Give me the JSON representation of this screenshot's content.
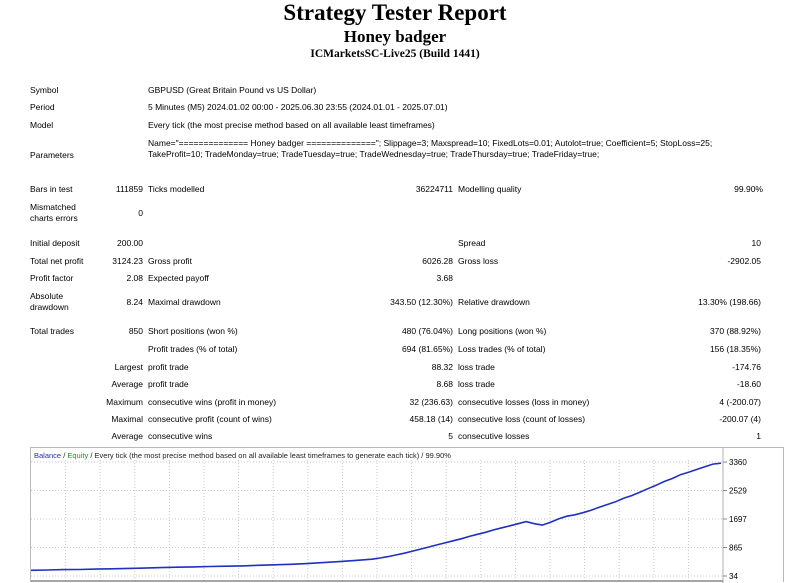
{
  "title": "Strategy Tester Report",
  "expert": "Honey badger",
  "server": "ICMarketsSC-Live25 (Build 1441)",
  "info": {
    "symbol_label": "Symbol",
    "symbol": "GBPUSD (Great Britain Pound vs US Dollar)",
    "period_label": "Period",
    "period": "5 Minutes (M5) 2024.01.02 00:00 - 2025.06.30 23:55 (2024.01.01 - 2025.07.01)",
    "model_label": "Model",
    "model": "Every tick (the most precise method based on all available least timeframes)",
    "parameters_label": "Parameters",
    "parameters": "Name=\"============== Honey badger ==============\"; Slippage=3; Maxspread=10; FixedLots=0.01; Autolot=true; Coefficient=5; StopLoss=25; TakeProfit=10; TradeMonday=true; TradeTuesday=true; TradeWednesday=true; TradeThursday=true; TradeFriday=true;"
  },
  "stats": {
    "bars_label": "Bars in test",
    "bars": "111859",
    "ticks_label": "Ticks modelled",
    "ticks": "36224711",
    "quality_label": "Modelling quality",
    "quality": "99.90%",
    "mismatch_label": "Mismatched charts errors",
    "mismatch": "0",
    "deposit_label": "Initial deposit",
    "deposit": "200.00",
    "spread_label": "Spread",
    "spread": "10",
    "net_label": "Total net profit",
    "net": "3124.23",
    "gross_profit_label": "Gross profit",
    "gross_profit": "6026.28",
    "gross_loss_label": "Gross loss",
    "gross_loss": "-2902.05",
    "pf_label": "Profit factor",
    "pf": "2.08",
    "payoff_label": "Expected payoff",
    "payoff": "3.68",
    "abs_dd_label": "Absolute drawdown",
    "abs_dd": "8.24",
    "max_dd_label": "Maximal drawdown",
    "max_dd": "343.50 (12.30%)",
    "rel_dd_label": "Relative drawdown",
    "rel_dd": "13.30% (198.66)",
    "trades_label": "Total trades",
    "trades": "850",
    "short_label": "Short positions (won %)",
    "short": "480 (76.04%)",
    "long_label": "Long positions (won %)",
    "long": "370 (88.92%)",
    "profit_trades_label": "Profit trades (% of total)",
    "profit_trades": "694 (81.65%)",
    "loss_trades_label": "Loss trades (% of total)",
    "loss_trades": "156 (18.35%)",
    "largest_label": "Largest",
    "largest_profit_label": "profit trade",
    "largest_profit": "88.32",
    "largest_loss_label": "loss trade",
    "largest_loss": "-174.76",
    "average_label": "Average",
    "average_profit_label": "profit trade",
    "average_profit": "8.68",
    "average_loss_label": "loss trade",
    "average_loss": "-18.60",
    "maximum_label": "Maximum",
    "max_wins_label": "consecutive wins (profit in money)",
    "max_wins": "32 (236.63)",
    "max_losses_label": "consecutive losses (loss in money)",
    "max_losses": "4 (-200.07)",
    "maximal_label": "Maximal",
    "maximal_profit_label": "consecutive profit (count of wins)",
    "maximal_profit": "458.18 (14)",
    "maximal_loss_label": "consecutive loss (count of losses)",
    "maximal_loss": "-200.07 (4)",
    "avg_cons_label": "Average",
    "avg_wins_label": "consecutive wins",
    "avg_wins": "5",
    "avg_losses_label": "consecutive losses",
    "avg_losses": "1"
  },
  "chart_caption": {
    "balance": "Balance",
    "sep1": " / ",
    "equity": "Equity",
    "rest": " / Every tick (the most precise method based on all available least timeframes to generate each tick) / 99.90%"
  },
  "chart_data": {
    "type": "line",
    "y_ticks": [
      "3360",
      "2529",
      "1697",
      "865",
      "34"
    ],
    "ylim": [
      34,
      3360
    ],
    "grid": true,
    "colors": {
      "balance": "#2030c0",
      "equity": "#1a9a1a"
    },
    "series": [
      {
        "name": "Balance",
        "x": [
          0,
          20,
          40,
          60,
          80,
          100,
          120,
          140,
          160,
          180,
          200,
          220,
          240,
          260,
          280,
          300,
          320,
          340,
          350,
          360,
          380,
          400,
          420,
          430,
          440,
          450,
          460,
          470,
          480,
          490,
          500,
          510,
          520,
          530,
          540,
          550,
          560,
          570,
          580,
          590,
          600,
          610,
          620,
          630,
          640,
          650,
          660,
          670,
          680,
          690,
          700,
          710,
          720,
          730,
          740,
          750,
          760,
          770,
          780,
          790,
          800,
          810,
          820,
          830,
          840,
          850
        ],
        "y": [
          200,
          210,
          220,
          225,
          235,
          245,
          255,
          265,
          280,
          290,
          300,
          310,
          320,
          330,
          345,
          360,
          375,
          395,
          410,
          425,
          455,
          490,
          525,
          560,
          600,
          650,
          700,
          760,
          820,
          880,
          940,
          1000,
          1060,
          1120,
          1190,
          1250,
          1310,
          1380,
          1440,
          1500,
          1560,
          1620,
          1560,
          1520,
          1600,
          1700,
          1780,
          1820,
          1880,
          1950,
          2040,
          2120,
          2200,
          2300,
          2380,
          2480,
          2580,
          2680,
          2790,
          2880,
          2990,
          3060,
          3140,
          3220,
          3300,
          3324
        ]
      }
    ]
  }
}
